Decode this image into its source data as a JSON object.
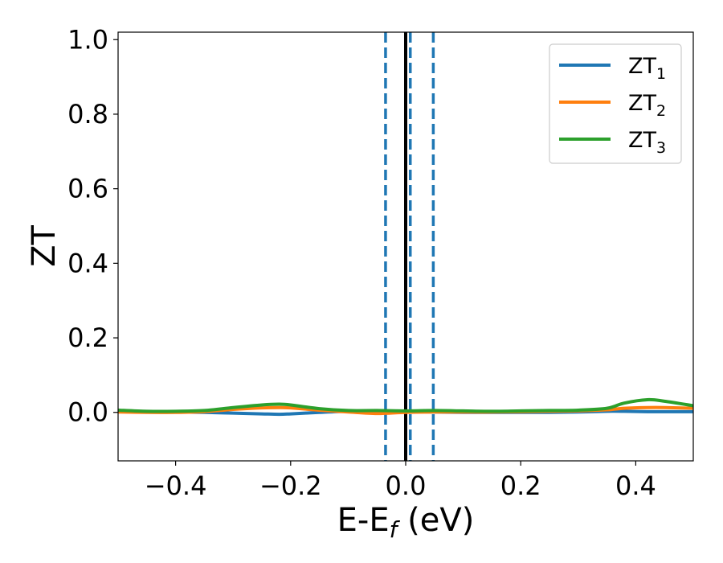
{
  "chart_data": {
    "type": "line",
    "xlabel": "E-E_f (eV)",
    "ylabel": "ZT",
    "xlim": [
      -0.5,
      0.5
    ],
    "ylim": [
      -0.13,
      1.02
    ],
    "xticks": [
      -0.4,
      -0.2,
      0.0,
      0.2,
      0.4
    ],
    "xtick_labels": [
      "−0.4",
      "−0.2",
      "0.0",
      "0.2",
      "0.4"
    ],
    "yticks": [
      0.0,
      0.2,
      0.4,
      0.6,
      0.8,
      1.0
    ],
    "ytick_labels": [
      "0.0",
      "0.2",
      "0.4",
      "0.6",
      "0.8",
      "1.0"
    ],
    "grid": false,
    "legend_position": "top-right",
    "vlines": [
      {
        "x": -0.035,
        "style": "dashed",
        "color": "#1f77b4"
      },
      {
        "x": 0.0,
        "style": "solid",
        "color": "#000000"
      },
      {
        "x": 0.008,
        "style": "dashed",
        "color": "#1f77b4"
      },
      {
        "x": 0.048,
        "style": "dashed",
        "color": "#1f77b4"
      }
    ],
    "x": [
      -0.5,
      -0.45,
      -0.4,
      -0.35,
      -0.3,
      -0.25,
      -0.22,
      -0.2,
      -0.15,
      -0.1,
      -0.05,
      0.0,
      0.05,
      0.1,
      0.15,
      0.2,
      0.25,
      0.3,
      0.35,
      0.38,
      0.42,
      0.45,
      0.5
    ],
    "series": [
      {
        "name": "ZT_1",
        "label_main": "ZT",
        "label_sub": "1",
        "color": "#1f77b4",
        "values": [
          0.002,
          0.001,
          0.001,
          0.0,
          -0.002,
          -0.004,
          -0.005,
          -0.004,
          0.0,
          0.003,
          0.003,
          0.002,
          0.001,
          0.0,
          0.0,
          0.0,
          0.0,
          0.001,
          0.003,
          0.003,
          0.002,
          0.002,
          0.002
        ]
      },
      {
        "name": "ZT_2",
        "label_main": "ZT",
        "label_sub": "2",
        "color": "#ff7f0e",
        "values": [
          0.001,
          0.0,
          0.0,
          0.002,
          0.008,
          0.012,
          0.013,
          0.012,
          0.006,
          0.001,
          -0.003,
          0.0,
          0.001,
          0.001,
          0.001,
          0.002,
          0.003,
          0.004,
          0.007,
          0.011,
          0.013,
          0.013,
          0.011
        ]
      },
      {
        "name": "ZT_3",
        "label_main": "ZT",
        "label_sub": "3",
        "color": "#2ca02c",
        "values": [
          0.006,
          0.003,
          0.003,
          0.005,
          0.013,
          0.02,
          0.022,
          0.02,
          0.01,
          0.005,
          0.005,
          0.004,
          0.005,
          0.004,
          0.003,
          0.004,
          0.005,
          0.006,
          0.011,
          0.025,
          0.034,
          0.03,
          0.018
        ]
      }
    ]
  }
}
